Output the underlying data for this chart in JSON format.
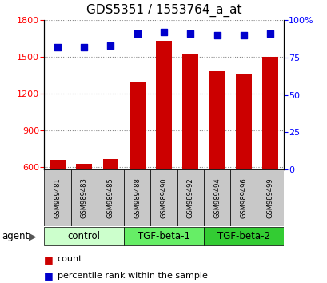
{
  "title": "GDS5351 / 1553764_a_at",
  "samples": [
    "GSM989481",
    "GSM989483",
    "GSM989485",
    "GSM989488",
    "GSM989490",
    "GSM989492",
    "GSM989494",
    "GSM989496",
    "GSM989499"
  ],
  "counts": [
    660,
    625,
    670,
    1300,
    1630,
    1520,
    1380,
    1360,
    1500
  ],
  "percentiles": [
    82,
    82,
    83,
    91,
    92,
    91,
    90,
    90,
    91
  ],
  "groups": [
    {
      "label": "control",
      "start": 0,
      "end": 3,
      "color": "#ccffcc"
    },
    {
      "label": "TGF-beta-1",
      "start": 3,
      "end": 6,
      "color": "#66ee66"
    },
    {
      "label": "TGF-beta-2",
      "start": 6,
      "end": 9,
      "color": "#33cc33"
    }
  ],
  "bar_color": "#cc0000",
  "dot_color": "#0000cc",
  "ylim_left": [
    580,
    1800
  ],
  "ylim_right": [
    0,
    100
  ],
  "yticks_left": [
    600,
    900,
    1200,
    1500,
    1800
  ],
  "yticks_right": [
    0,
    25,
    50,
    75,
    100
  ],
  "cell_bg": "#c8c8c8",
  "plot_bg": "#ffffff",
  "title_fontsize": 11,
  "tick_fontsize": 8,
  "sample_fontsize": 6,
  "label_fontsize": 8.5,
  "legend_fontsize": 8
}
